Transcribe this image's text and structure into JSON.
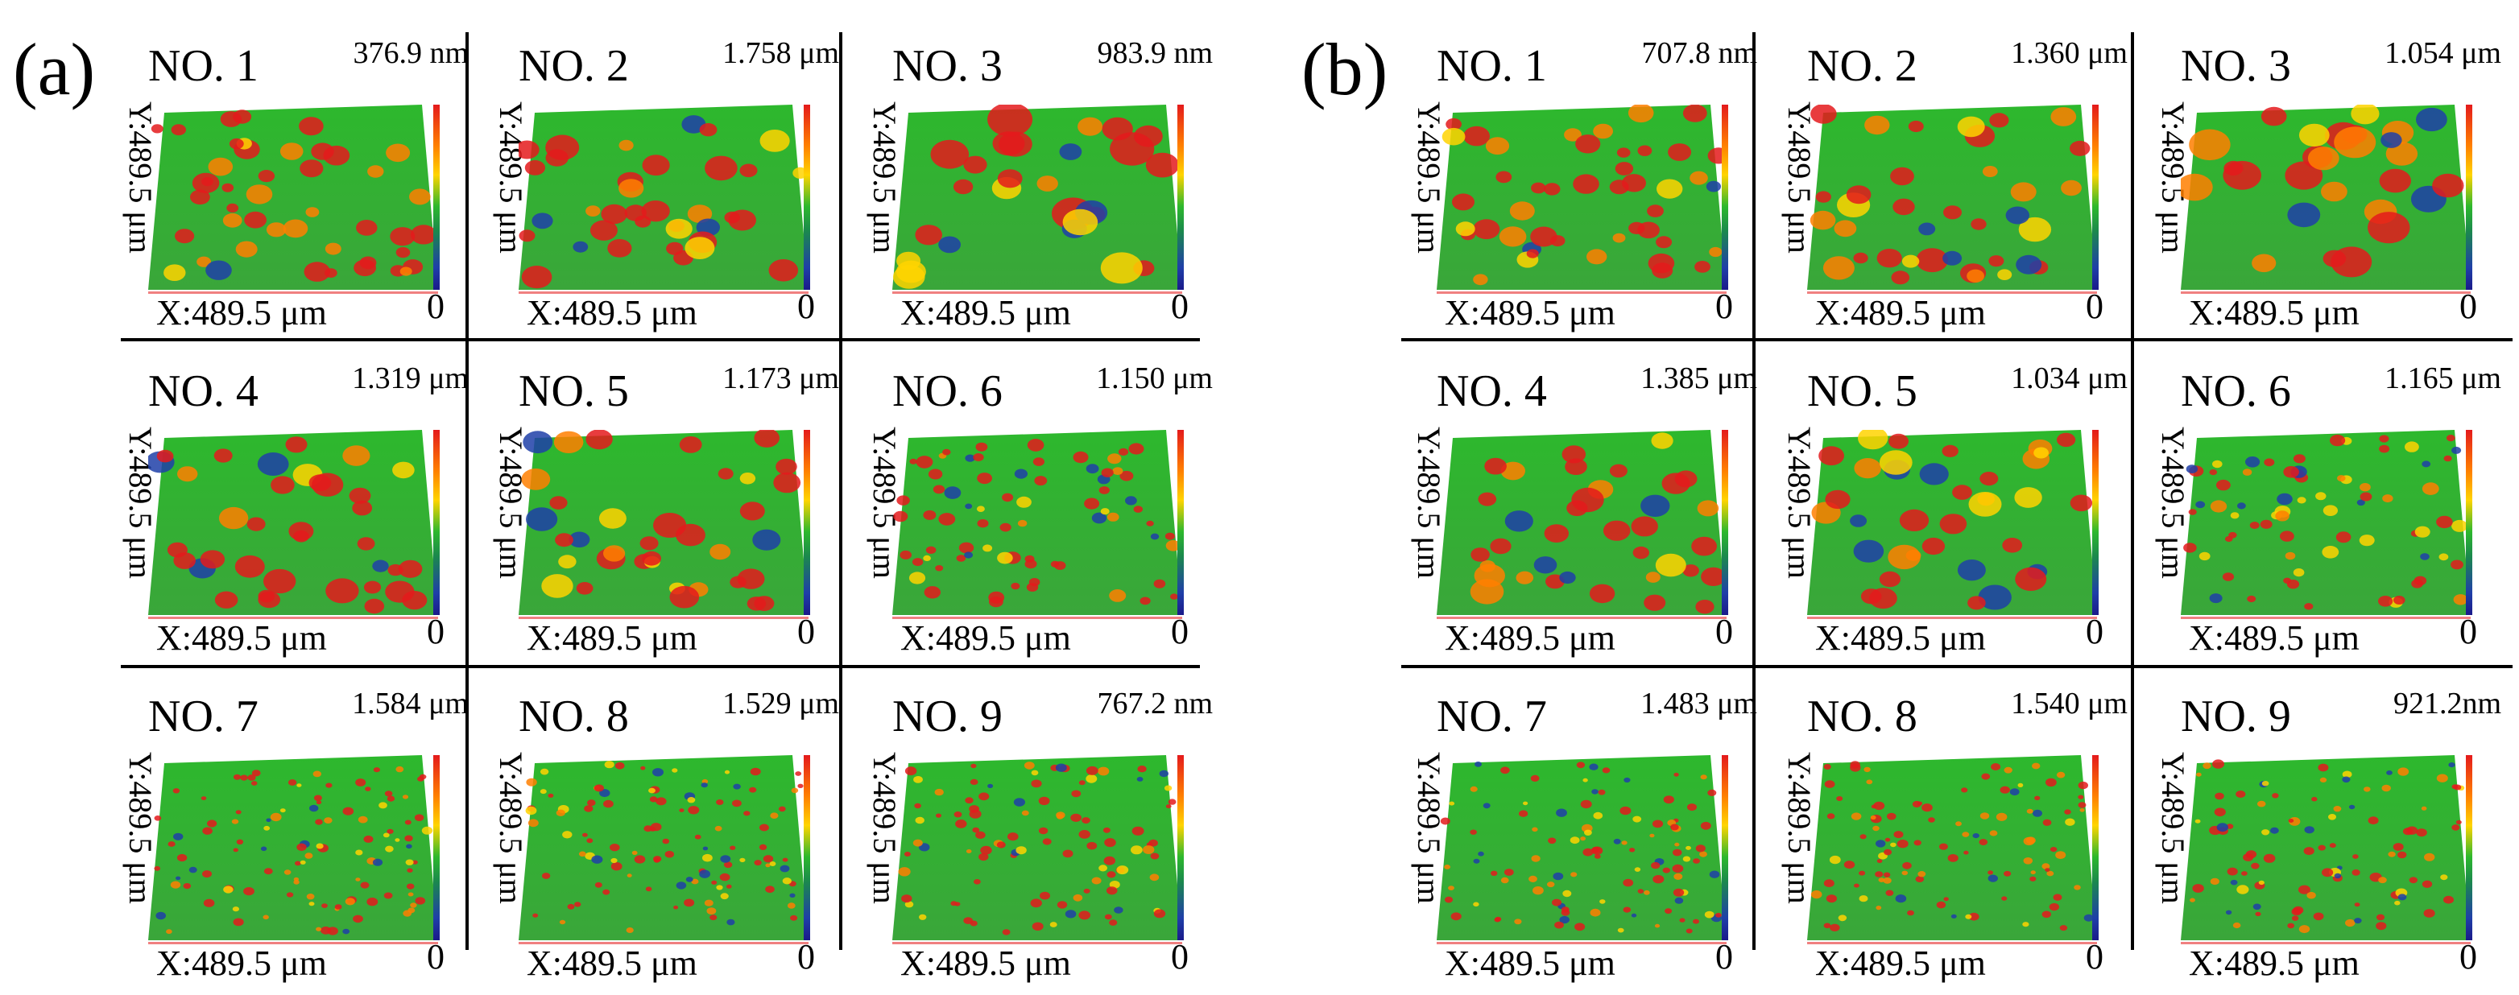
{
  "figure": {
    "panels": [
      {
        "label": "(a)",
        "samples": [
          {
            "no": "NO. 1",
            "max": "376.9 nm",
            "zero": "0",
            "y_axis": "Y:489.5 μm",
            "x_axis": "X:489.5 μm"
          },
          {
            "no": "NO. 2",
            "max": "1.758 μm",
            "zero": "0",
            "y_axis": "Y:489.5 μm",
            "x_axis": "X:489.5 μm"
          },
          {
            "no": "NO. 3",
            "max": "983.9 nm",
            "zero": "0",
            "y_axis": "Y:489.5 μm",
            "x_axis": "X:489.5 μm"
          },
          {
            "no": "NO. 4",
            "max": "1.319 μm",
            "zero": "0",
            "y_axis": "Y:489.5 μm",
            "x_axis": "X:489.5 μm"
          },
          {
            "no": "NO. 5",
            "max": "1.173 μm",
            "zero": "0",
            "y_axis": "Y:489.5 μm",
            "x_axis": "X:489.5 μm"
          },
          {
            "no": "NO. 6",
            "max": "1.150 μm",
            "zero": "0",
            "y_axis": "Y:489.5 μm",
            "x_axis": "X:489.5 μm"
          },
          {
            "no": "NO. 7",
            "max": "1.584 μm",
            "zero": "0",
            "y_axis": "Y:489.5 μm",
            "x_axis": "X:489.5 μm"
          },
          {
            "no": "NO. 8",
            "max": "1.529 μm",
            "zero": "0",
            "y_axis": "Y:489.5 μm",
            "x_axis": "X:489.5 μm"
          },
          {
            "no": "NO. 9",
            "max": "767.2 nm",
            "zero": "0",
            "y_axis": "Y:489.5 μm",
            "x_axis": "X:489.5 μm"
          }
        ]
      },
      {
        "label": "(b)",
        "samples": [
          {
            "no": "NO. 1",
            "max": "707.8 nm",
            "zero": "0",
            "y_axis": "Y:489.5 μm",
            "x_axis": "X:489.5 μm"
          },
          {
            "no": "NO. 2",
            "max": "1.360 μm",
            "zero": "0",
            "y_axis": "Y:489.5 μm",
            "x_axis": "X:489.5 μm"
          },
          {
            "no": "NO. 3",
            "max": "1.054 μm",
            "zero": "0",
            "y_axis": "Y:489.5 μm",
            "x_axis": "X:489.5 μm"
          },
          {
            "no": "NO. 4",
            "max": "1.385 μm",
            "zero": "0",
            "y_axis": "Y:489.5 μm",
            "x_axis": "X:489.5 μm"
          },
          {
            "no": "NO. 5",
            "max": "1.034 μm",
            "zero": "0",
            "y_axis": "Y:489.5 μm",
            "x_axis": "X:489.5 μm"
          },
          {
            "no": "NO. 6",
            "max": "1.165 μm",
            "zero": "0",
            "y_axis": "Y:489.5 μm",
            "x_axis": "X:489.5 μm"
          },
          {
            "no": "NO. 7",
            "max": "1.483 μm",
            "zero": "0",
            "y_axis": "Y:489.5 μm",
            "x_axis": "X:489.5 μm"
          },
          {
            "no": "NO. 8",
            "max": "1.540 μm",
            "zero": "0",
            "y_axis": "Y:489.5 μm",
            "x_axis": "X:489.5 μm"
          },
          {
            "no": "NO. 9",
            "max": "921.2nm",
            "zero": "0",
            "y_axis": "Y:489.5 μm",
            "x_axis": "X:489.5 μm"
          }
        ]
      }
    ],
    "colors": {
      "high": "#e41a1c",
      "mid_high": "#ff7f00",
      "mid": "#2db82d",
      "low": "#1f3fa8"
    }
  }
}
